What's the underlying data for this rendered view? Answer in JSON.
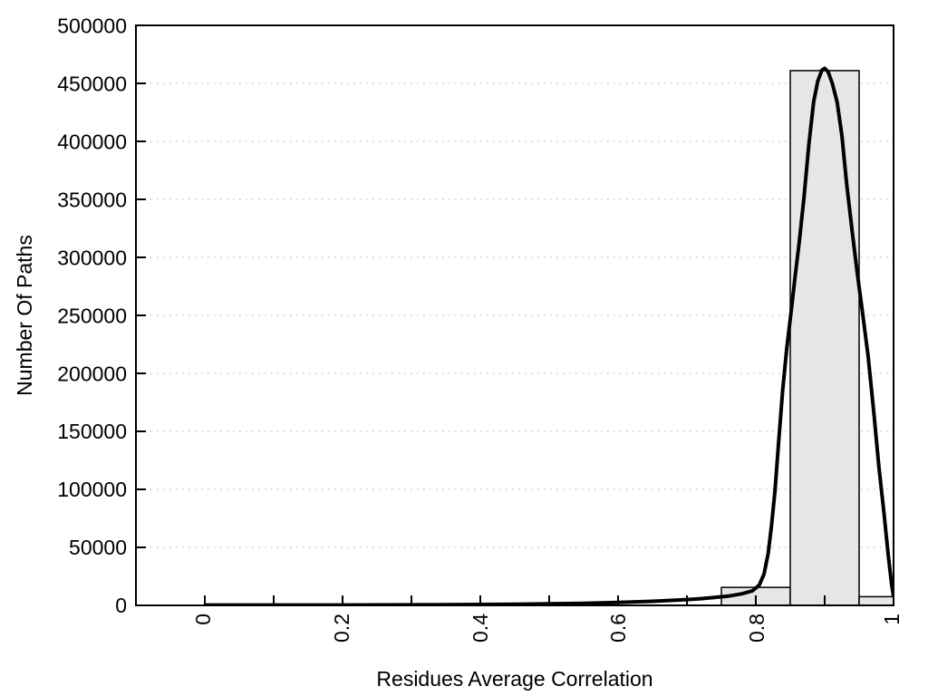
{
  "chart_data": {
    "type": "bar",
    "subtype": "histogram-with-fit-curve",
    "title": "",
    "xlabel": "Residues Average Correlation",
    "ylabel": "Number Of Paths",
    "xlim": [
      -0.1,
      1.0
    ],
    "ylim": [
      0,
      500000
    ],
    "grid": {
      "horizontal_dotted": true,
      "color": "#c8c8c8"
    },
    "legend": "none",
    "x_tick_labels": [
      "0",
      "0.2",
      "0.4",
      "0.6",
      "0.8",
      "1"
    ],
    "x_tick_values": [
      0,
      0.2,
      0.4,
      0.6,
      0.8,
      1
    ],
    "x_minor_tick_step": 0.1,
    "x_tick_label_rotation_deg": -90,
    "y_tick_labels": [
      "0",
      "50000",
      "100000",
      "150000",
      "200000",
      "250000",
      "300000",
      "350000",
      "400000",
      "450000",
      "500000"
    ],
    "y_tick_values": [
      0,
      50000,
      100000,
      150000,
      200000,
      250000,
      300000,
      350000,
      400000,
      450000,
      500000
    ],
    "bar_fill": "#e6e6e6",
    "bar_stroke": "#000000",
    "bars": [
      {
        "x0": 0.75,
        "x1": 0.85,
        "value": 15500
      },
      {
        "x0": 0.85,
        "x1": 0.95,
        "value": 461000
      },
      {
        "x0": 0.95,
        "x1": 1.0,
        "value": 7500
      }
    ],
    "curve": {
      "name": "fit-curve",
      "color": "#000000",
      "points": [
        [
          0,
          300
        ],
        [
          0.05,
          300
        ],
        [
          0.1,
          300
        ],
        [
          0.15,
          320
        ],
        [
          0.2,
          350
        ],
        [
          0.25,
          400
        ],
        [
          0.3,
          480
        ],
        [
          0.35,
          600
        ],
        [
          0.4,
          780
        ],
        [
          0.45,
          1000
        ],
        [
          0.5,
          1350
        ],
        [
          0.55,
          1800
        ],
        [
          0.6,
          2500
        ],
        [
          0.65,
          3500
        ],
        [
          0.7,
          5000
        ],
        [
          0.72,
          5800
        ],
        [
          0.74,
          6800
        ],
        [
          0.76,
          8000
        ],
        [
          0.78,
          10000
        ],
        [
          0.795,
          12500
        ],
        [
          0.805,
          17500
        ],
        [
          0.812,
          27000
        ],
        [
          0.818,
          45000
        ],
        [
          0.823,
          70000
        ],
        [
          0.828,
          100000
        ],
        [
          0.833,
          140000
        ],
        [
          0.839,
          185000
        ],
        [
          0.845,
          222000
        ],
        [
          0.851,
          252000
        ],
        [
          0.857,
          283000
        ],
        [
          0.863,
          313000
        ],
        [
          0.87,
          352000
        ],
        [
          0.877,
          397000
        ],
        [
          0.884,
          434000
        ],
        [
          0.89,
          452000
        ],
        [
          0.896,
          461500
        ],
        [
          0.9,
          463000
        ],
        [
          0.905,
          460000
        ],
        [
          0.911,
          450000
        ],
        [
          0.918,
          434000
        ],
        [
          0.925,
          405000
        ],
        [
          0.932,
          363000
        ],
        [
          0.94,
          322000
        ],
        [
          0.947,
          288000
        ],
        [
          0.955,
          252000
        ],
        [
          0.963,
          215000
        ],
        [
          0.971,
          168000
        ],
        [
          0.979,
          118000
        ],
        [
          0.986,
          80000
        ],
        [
          0.992,
          45000
        ],
        [
          0.997,
          19000
        ],
        [
          1.0,
          7500
        ]
      ]
    }
  }
}
